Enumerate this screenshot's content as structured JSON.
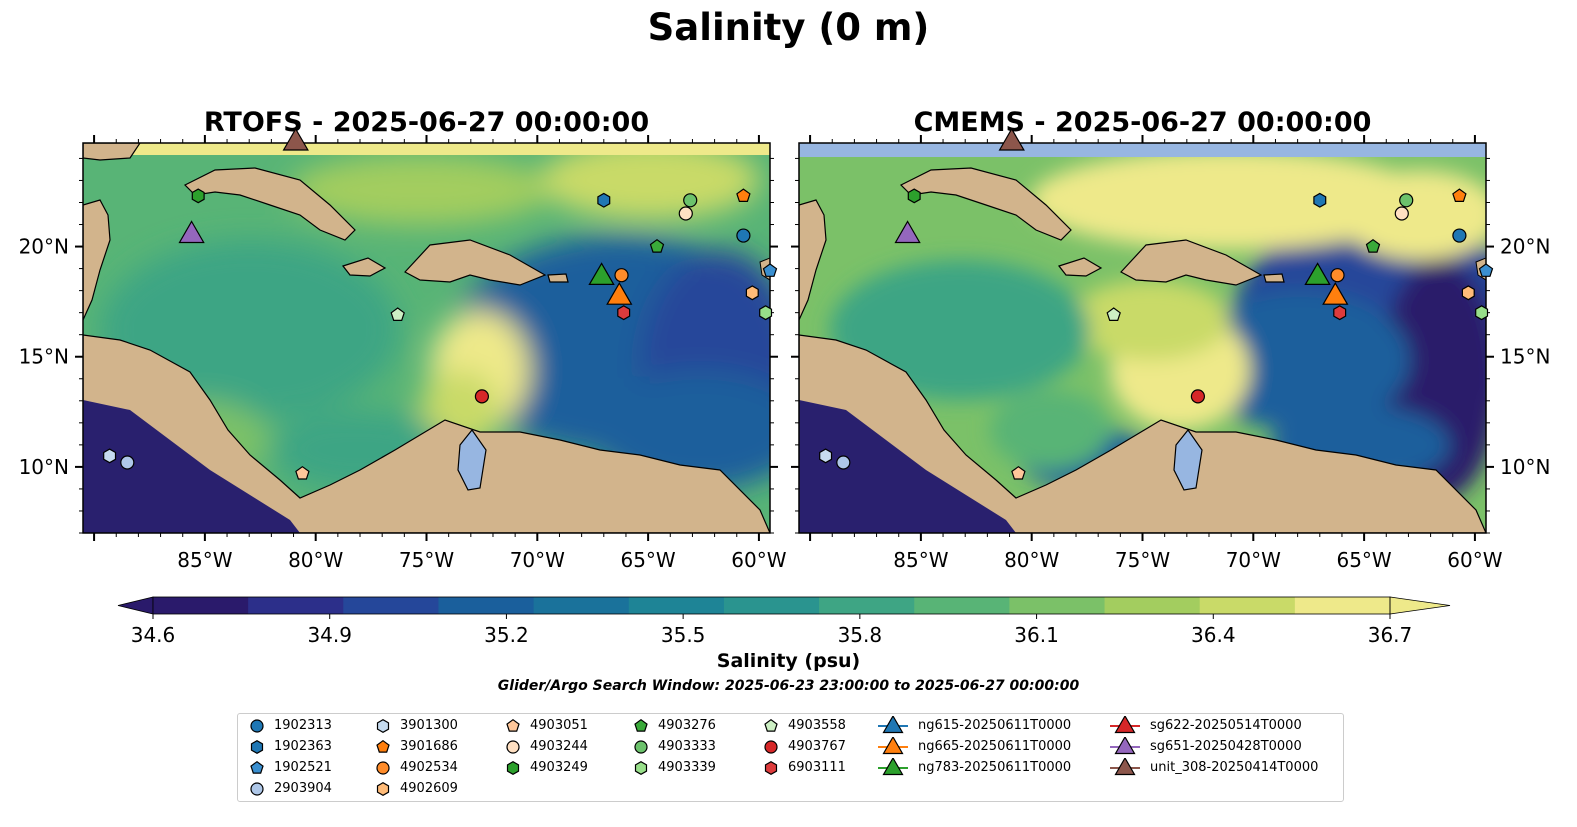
{
  "figure": {
    "suptitle": "Salinity (0 m)",
    "search_window": "Glider/Argo Search Window: 2025-06-23 23:00:00 to 2025-06-27 00:00:00"
  },
  "chart_data": [
    {
      "type": "heatmap",
      "title": "RTOFS - 2025-06-27 00:00:00",
      "xlim": [
        -90.5,
        -59.5
      ],
      "ylim": [
        7,
        24.7
      ],
      "x_ticks": [
        "85°W",
        "80°W",
        "75°W",
        "70°W",
        "65°W",
        "60°W"
      ],
      "x_tick_values": [
        -85,
        -80,
        -75,
        -70,
        -65,
        -60
      ],
      "y_ticks": [
        "20°N",
        "15°N",
        "10°N"
      ],
      "y_tick_values": [
        20,
        15,
        10
      ],
      "y_tick_side": "left",
      "field": "surface salinity (psu)"
    },
    {
      "type": "heatmap",
      "title": "CMEMS - 2025-06-27 00:00:00",
      "xlim": [
        -90.5,
        -59.5
      ],
      "ylim": [
        7,
        24.7
      ],
      "x_ticks": [
        "85°W",
        "80°W",
        "75°W",
        "70°W",
        "65°W",
        "60°W"
      ],
      "x_tick_values": [
        -85,
        -80,
        -75,
        -70,
        -65,
        -60
      ],
      "y_ticks": [
        "20°N",
        "15°N",
        "10°N"
      ],
      "y_tick_values": [
        20,
        15,
        10
      ],
      "y_tick_side": "right",
      "field": "surface salinity (psu)"
    }
  ],
  "colorbar": {
    "label": "Salinity (psu)",
    "min": 34.6,
    "max": 36.7,
    "tick_labels": [
      "34.6",
      "34.9",
      "35.2",
      "35.5",
      "35.8",
      "36.1",
      "36.4",
      "36.7"
    ],
    "tick_values": [
      34.6,
      34.9,
      35.2,
      35.5,
      35.8,
      36.1,
      36.4,
      36.7
    ],
    "colors": [
      "#2a1a6b",
      "#2c2f8a",
      "#25479a",
      "#1a5f9c",
      "#1a729b",
      "#1e8496",
      "#2a948f",
      "#3ea584",
      "#58b476",
      "#7bc168",
      "#a3cd5f",
      "#c9da68",
      "#eee98a"
    ],
    "extend": "both"
  },
  "map_colors": {
    "land": "#d2b48c",
    "lakes": "#97b6e1",
    "low": "#29206e",
    "mid": "#3f9e86",
    "high": "#fbf0a0"
  },
  "legend": {
    "items": [
      {
        "label": "1902313",
        "marker": "circle",
        "color": "#1f77b4"
      },
      {
        "label": "1902363",
        "marker": "hexagon",
        "color": "#1f77b4"
      },
      {
        "label": "1902521",
        "marker": "pentagon",
        "color": "#3a8fd0"
      },
      {
        "label": "2903904",
        "marker": "circle",
        "color": "#aec7e8"
      },
      {
        "label": "3901300",
        "marker": "hexagon",
        "color": "#c6dbef"
      },
      {
        "label": "3901686",
        "marker": "pentagon",
        "color": "#ff7f0e"
      },
      {
        "label": "4902534",
        "marker": "circle",
        "color": "#ff8c2a"
      },
      {
        "label": "4902609",
        "marker": "hexagon",
        "color": "#ffbb78"
      },
      {
        "label": "4903051",
        "marker": "pentagon",
        "color": "#ffc79a"
      },
      {
        "label": "4903244",
        "marker": "circle",
        "color": "#ffe0c2"
      },
      {
        "label": "4903249",
        "marker": "hexagon",
        "color": "#2ca02c"
      },
      {
        "label": "4903276",
        "marker": "pentagon",
        "color": "#3aaa3a"
      },
      {
        "label": "4903333",
        "marker": "circle",
        "color": "#6cc26c"
      },
      {
        "label": "4903339",
        "marker": "hexagon",
        "color": "#98df8a"
      },
      {
        "label": "4903558",
        "marker": "pentagon",
        "color": "#cdf0c4"
      },
      {
        "label": "4903767",
        "marker": "circle",
        "color": "#d62728"
      },
      {
        "label": "6903111",
        "marker": "hexagon",
        "color": "#dd3b3c"
      },
      {
        "label": "ng615-20250611T0000",
        "marker": "triangle",
        "color": "#1f77b4"
      },
      {
        "label": "ng665-20250611T0000",
        "marker": "triangle",
        "color": "#ff7f0e"
      },
      {
        "label": "ng783-20250611T0000",
        "marker": "triangle",
        "color": "#2ca02c"
      },
      {
        "label": "sg622-20250514T0000",
        "marker": "triangle",
        "color": "#d62728"
      },
      {
        "label": "sg651-20250428T0000",
        "marker": "triangle",
        "color": "#9467bd"
      },
      {
        "label": "unit_308-20250414T0000",
        "marker": "triangle",
        "color": "#8c564b"
      }
    ]
  },
  "markers": [
    {
      "id": "1902313",
      "lon": -60.7,
      "lat": 20.5
    },
    {
      "id": "1902363",
      "lon": -67.0,
      "lat": 22.1
    },
    {
      "id": "1902521",
      "lon": -59.5,
      "lat": 18.9
    },
    {
      "id": "2903904",
      "lon": -88.5,
      "lat": 10.2
    },
    {
      "id": "3901300",
      "lon": -89.3,
      "lat": 10.5
    },
    {
      "id": "3901686",
      "lon": -60.7,
      "lat": 22.3
    },
    {
      "id": "4902534",
      "lon": -66.2,
      "lat": 18.7
    },
    {
      "id": "4902609",
      "lon": -60.3,
      "lat": 17.9
    },
    {
      "id": "4903051",
      "lon": -80.6,
      "lat": 9.7
    },
    {
      "id": "4903244",
      "lon": -63.3,
      "lat": 21.5
    },
    {
      "id": "4903249",
      "lon": -85.3,
      "lat": 22.3
    },
    {
      "id": "4903276",
      "lon": -64.6,
      "lat": 20.0
    },
    {
      "id": "4903333",
      "lon": -63.1,
      "lat": 22.1
    },
    {
      "id": "4903339",
      "lon": -59.7,
      "lat": 17.0
    },
    {
      "id": "4903558",
      "lon": -76.3,
      "lat": 16.9
    },
    {
      "id": "4903767",
      "lon": -72.5,
      "lat": 13.2
    },
    {
      "id": "6903111",
      "lon": -66.1,
      "lat": 17.0
    },
    {
      "id": "ng665-20250611T0000",
      "lon": -66.3,
      "lat": 17.7
    },
    {
      "id": "ng783-20250611T0000",
      "lon": -67.1,
      "lat": 18.6
    },
    {
      "id": "sg651-20250428T0000",
      "lon": -85.6,
      "lat": 20.5
    },
    {
      "id": "unit_308-20250414T0000",
      "lon": -80.9,
      "lat": 24.7
    }
  ]
}
